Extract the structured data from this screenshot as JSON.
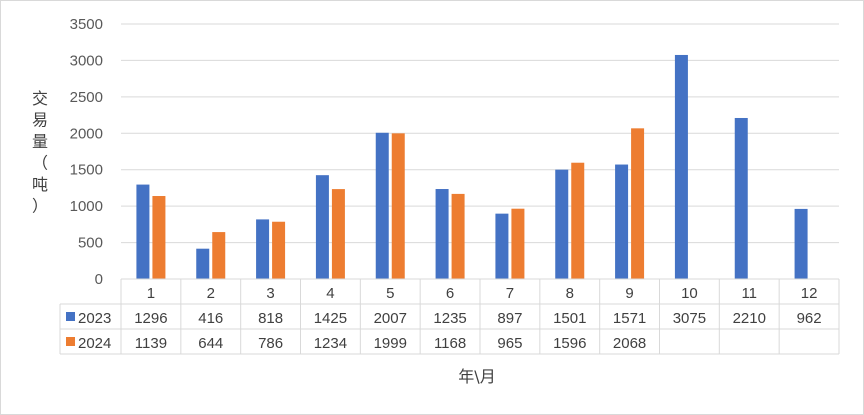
{
  "chart_data": {
    "type": "bar",
    "ylabel_chars": [
      "交",
      "易",
      "量",
      "（",
      "吨",
      "）"
    ],
    "xlabel": "年\\月",
    "categories": [
      "1",
      "2",
      "3",
      "4",
      "5",
      "6",
      "7",
      "8",
      "9",
      "10",
      "11",
      "12"
    ],
    "ylim": [
      0,
      3500
    ],
    "yticks": [
      "0",
      "500",
      "1000",
      "1500",
      "2000",
      "2500",
      "3000",
      "3500"
    ],
    "grid": true,
    "legend": "data-table",
    "series": [
      {
        "name": "2023",
        "color": "#4472C4",
        "values": [
          1296,
          416,
          818,
          1425,
          2007,
          1235,
          897,
          1501,
          1571,
          3075,
          2210,
          962
        ],
        "labels": [
          "1296",
          "416",
          "818",
          "1425",
          "2007",
          "1235",
          "897",
          "1501",
          "1571",
          "3075",
          "2210",
          "962"
        ]
      },
      {
        "name": "2024",
        "color": "#ED7D31",
        "values": [
          1139,
          644,
          786,
          1234,
          1999,
          1168,
          965,
          1596,
          2068,
          null,
          null,
          null
        ],
        "labels": [
          "1139",
          "644",
          "786",
          "1234",
          "1999",
          "1168",
          "965",
          "1596",
          "2068",
          "",
          "",
          ""
        ]
      }
    ]
  }
}
